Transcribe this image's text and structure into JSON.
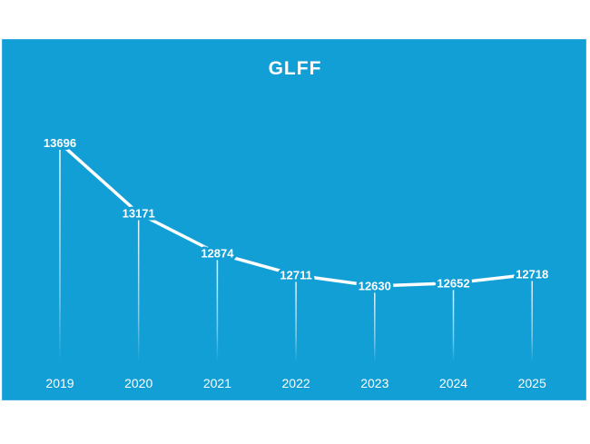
{
  "chart_data": {
    "type": "line",
    "title": "GLFF",
    "xlabel": "",
    "ylabel": "",
    "categories": [
      "2019",
      "2020",
      "2021",
      "2022",
      "2023",
      "2024",
      "2025"
    ],
    "values": [
      13696,
      13171,
      12874,
      12711,
      12630,
      12652,
      12718
    ],
    "ylim": [
      11900,
      13800
    ],
    "grid": false,
    "legend": "none",
    "data_labels": true,
    "drop_lines": true
  },
  "colors": {
    "background": "#129fd6",
    "line": "#ffffff",
    "text": "#ffffff"
  }
}
